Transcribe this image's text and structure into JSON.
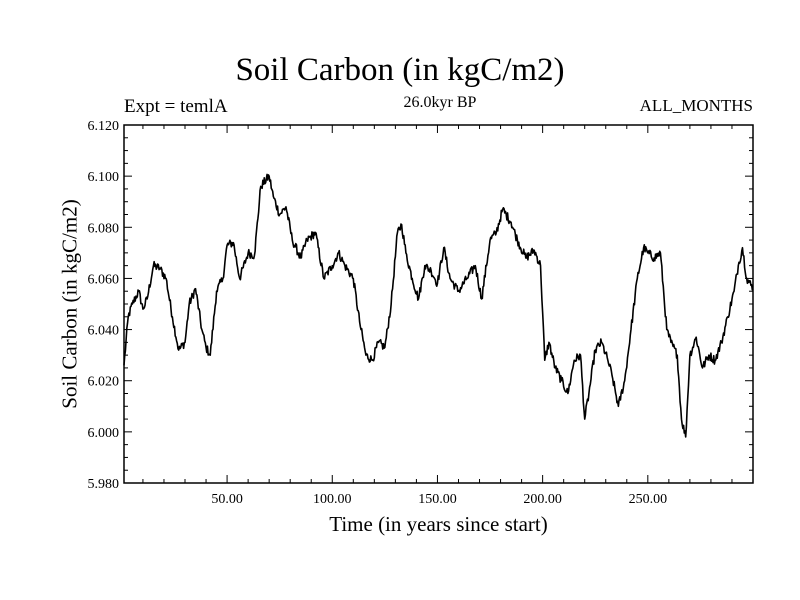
{
  "chart_data": {
    "type": "line",
    "title": "Soil Carbon (in kgC/m2)",
    "subtitle_left": "Expt = temlA",
    "subtitle_center": "26.0kyr BP",
    "subtitle_right": "ALL_MONTHS",
    "xlabel": "Time (in years since start)",
    "ylabel": "Soil Carbon (in kgC/m2)",
    "xlim": [
      1,
      300
    ],
    "ylim": [
      5.98,
      6.12
    ],
    "grid": false,
    "x_major_ticks": [
      50,
      100,
      150,
      200,
      250
    ],
    "x_tick_labels": [
      "50.00",
      "100.00",
      "150.00",
      "200.00",
      "250.00"
    ],
    "y_major_ticks": [
      5.98,
      6.0,
      6.02,
      6.04,
      6.06,
      6.08,
      6.1,
      6.12
    ],
    "y_tick_labels": [
      "5.980",
      "6.000",
      "6.020",
      "6.040",
      "6.060",
      "6.080",
      "6.100",
      "6.120"
    ],
    "series": [
      {
        "name": "Soil Carbon",
        "x": [
          1,
          3,
          5,
          8,
          10,
          12,
          15,
          18,
          21,
          24,
          27,
          30,
          32,
          35,
          38,
          40,
          42,
          45,
          48,
          50,
          53,
          56,
          60,
          63,
          66,
          70,
          72,
          75,
          78,
          81,
          85,
          88,
          92,
          96,
          100,
          103,
          106,
          110,
          113,
          116,
          119,
          122,
          125,
          128,
          131,
          133,
          135,
          138,
          141,
          144,
          147,
          150,
          153,
          156,
          160,
          164,
          168,
          171,
          175,
          178,
          181,
          185,
          188,
          192,
          196,
          199,
          201,
          203,
          206,
          209,
          212,
          215,
          218,
          220,
          222,
          225,
          228,
          231,
          233,
          236,
          239,
          242,
          245,
          248,
          250,
          253,
          256,
          259,
          261,
          264,
          266,
          268,
          270,
          273,
          276,
          279,
          282,
          285,
          288,
          291,
          293,
          295,
          297,
          300
        ],
        "y": [
          6.026,
          6.045,
          6.05,
          6.055,
          6.048,
          6.052,
          6.065,
          6.064,
          6.06,
          6.045,
          6.032,
          6.035,
          6.05,
          6.056,
          6.04,
          6.033,
          6.03,
          6.055,
          6.06,
          6.073,
          6.074,
          6.06,
          6.07,
          6.069,
          6.096,
          6.1,
          6.092,
          6.085,
          6.088,
          6.075,
          6.068,
          6.075,
          6.078,
          6.06,
          6.065,
          6.07,
          6.065,
          6.06,
          6.043,
          6.03,
          6.028,
          6.035,
          6.033,
          6.05,
          6.078,
          6.081,
          6.07,
          6.06,
          6.052,
          6.065,
          6.063,
          6.058,
          6.072,
          6.06,
          6.055,
          6.06,
          6.065,
          6.052,
          6.075,
          6.078,
          6.087,
          6.082,
          6.075,
          6.068,
          6.071,
          6.065,
          6.028,
          6.035,
          6.025,
          6.02,
          6.015,
          6.028,
          6.03,
          6.005,
          6.015,
          6.032,
          6.035,
          6.028,
          6.022,
          6.01,
          6.02,
          6.04,
          6.06,
          6.072,
          6.07,
          6.068,
          6.07,
          6.04,
          6.035,
          6.03,
          6.005,
          5.998,
          6.03,
          6.037,
          6.025,
          6.03,
          6.028,
          6.035,
          6.045,
          6.055,
          6.065,
          6.072,
          6.06,
          6.056
        ]
      }
    ]
  }
}
